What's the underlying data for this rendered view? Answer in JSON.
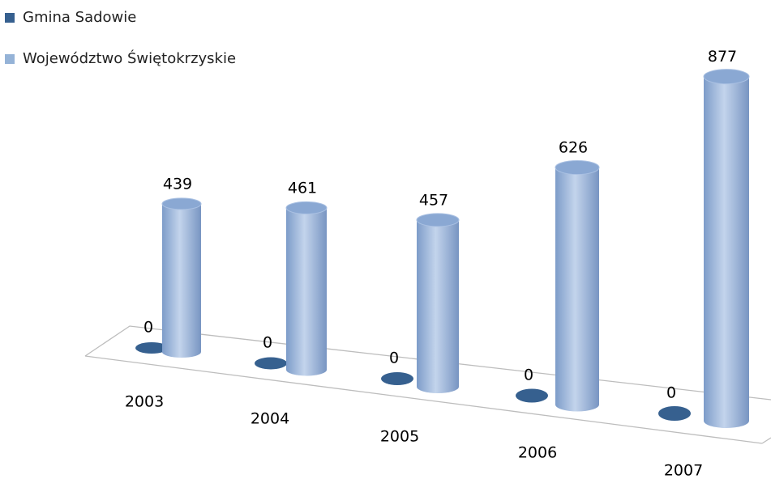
{
  "chart_data": {
    "type": "bar3d",
    "categories": [
      "2003",
      "2004",
      "2005",
      "2006",
      "2007"
    ],
    "series": [
      {
        "name": "Gmina Sadowie",
        "color": "#36608f",
        "values": [
          0,
          0,
          0,
          0,
          0
        ]
      },
      {
        "name": "Województwo Świętokrzyskie",
        "color": "#95b3d7",
        "values": [
          439,
          461,
          457,
          626,
          877
        ]
      }
    ],
    "legend": "top-left"
  }
}
